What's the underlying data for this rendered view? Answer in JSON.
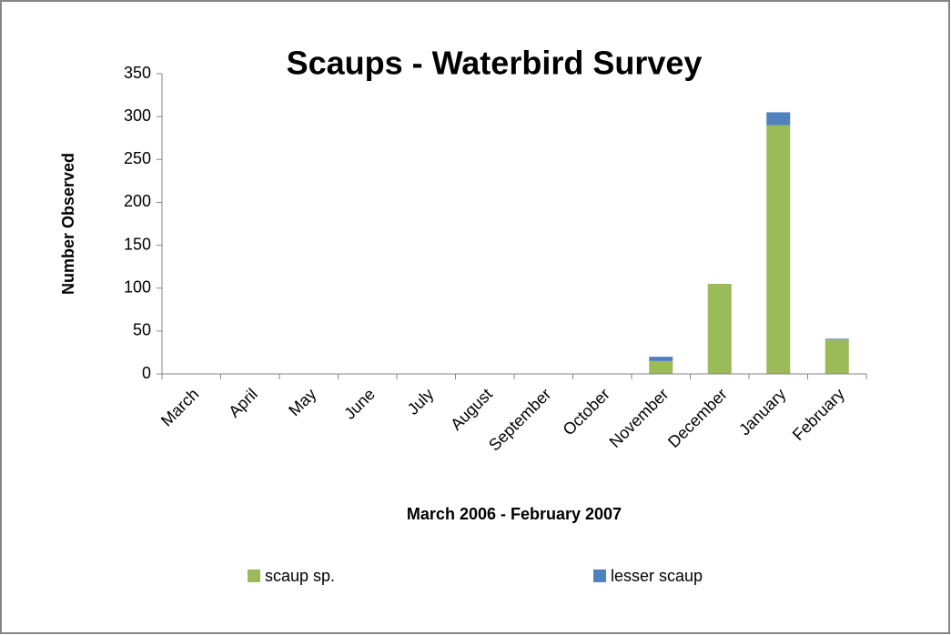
{
  "chart_data": {
    "type": "bar",
    "stacked": true,
    "title": "Scaups - Waterbird Survey",
    "x_label": "March 2006 - February 2007",
    "y_label": "Number Observed",
    "categories": [
      "March",
      "April",
      "May",
      "June",
      "July",
      "August",
      "September",
      "October",
      "November",
      "December",
      "January",
      "February"
    ],
    "series": [
      {
        "name": "scaup sp.",
        "color": "#9bbb59",
        "values": [
          0,
          0,
          0,
          0,
          0,
          0,
          0,
          0,
          15,
          105,
          290,
          40
        ]
      },
      {
        "name": "lesser scaup",
        "color": "#4f81bd",
        "values": [
          0,
          0,
          0,
          0,
          0,
          0,
          0,
          0,
          5,
          0,
          15,
          1
        ]
      }
    ],
    "ylim": [
      0,
      350
    ],
    "yticks": [
      0,
      50,
      100,
      150,
      200,
      250,
      300,
      350
    ],
    "grid": false,
    "legend": "bottom"
  }
}
